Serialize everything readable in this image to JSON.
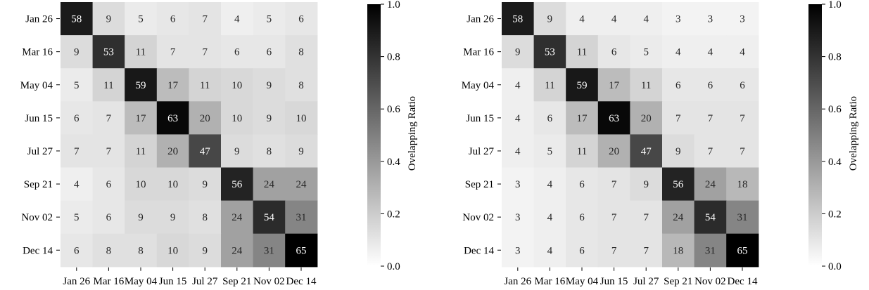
{
  "chart_data": [
    {
      "type": "heatmap",
      "row_labels": [
        "Jan 26",
        "Mar 16",
        "May 04",
        "Jun 15",
        "Jul 27",
        "Sep 21",
        "Nov 02",
        "Dec 14"
      ],
      "col_labels": [
        "Jan 26",
        "Mar 16",
        "May 04",
        "Jun 15",
        "Jul 27",
        "Sep 21",
        "Nov 02",
        "Dec 14"
      ],
      "values": [
        [
          58,
          9,
          5,
          6,
          7,
          4,
          5,
          6
        ],
        [
          9,
          53,
          11,
          7,
          7,
          6,
          6,
          8
        ],
        [
          5,
          11,
          59,
          17,
          11,
          10,
          9,
          8
        ],
        [
          6,
          7,
          17,
          63,
          20,
          10,
          9,
          10
        ],
        [
          7,
          7,
          11,
          20,
          47,
          9,
          8,
          9
        ],
        [
          4,
          6,
          10,
          10,
          9,
          56,
          24,
          24
        ],
        [
          5,
          6,
          9,
          9,
          8,
          24,
          54,
          31
        ],
        [
          6,
          8,
          8,
          10,
          9,
          24,
          31,
          65
        ]
      ],
      "colorbar": {
        "label": "Ovelapping Ratio",
        "range": [
          0.0,
          1.0
        ],
        "ticks": [
          "0.0",
          "0.2",
          "0.4",
          "0.6",
          "0.8",
          "1.0"
        ],
        "colormap": "greys"
      }
    },
    {
      "type": "heatmap",
      "row_labels": [
        "Jan 26",
        "Mar 16",
        "May 04",
        "Jun 15",
        "Jul 27",
        "Sep 21",
        "Nov 02",
        "Dec 14"
      ],
      "col_labels": [
        "Jan 26",
        "Mar 16",
        "May 04",
        "Jun 15",
        "Jul 27",
        "Sep 21",
        "Nov 02",
        "Dec 14"
      ],
      "values": [
        [
          58,
          9,
          4,
          4,
          4,
          3,
          3,
          3
        ],
        [
          9,
          53,
          11,
          6,
          5,
          4,
          4,
          4
        ],
        [
          4,
          11,
          59,
          17,
          11,
          6,
          6,
          6
        ],
        [
          4,
          6,
          17,
          63,
          20,
          7,
          7,
          7
        ],
        [
          4,
          5,
          11,
          20,
          47,
          9,
          7,
          7
        ],
        [
          3,
          4,
          6,
          7,
          9,
          56,
          24,
          18
        ],
        [
          3,
          4,
          6,
          7,
          7,
          24,
          54,
          31
        ],
        [
          3,
          4,
          6,
          7,
          7,
          18,
          31,
          65
        ]
      ],
      "colorbar": {
        "label": "Ovelapping Ratio",
        "range": [
          0.0,
          1.0
        ],
        "ticks": [
          "0.0",
          "0.2",
          "0.4",
          "0.6",
          "0.8",
          "1.0"
        ],
        "colormap": "greys"
      }
    }
  ]
}
